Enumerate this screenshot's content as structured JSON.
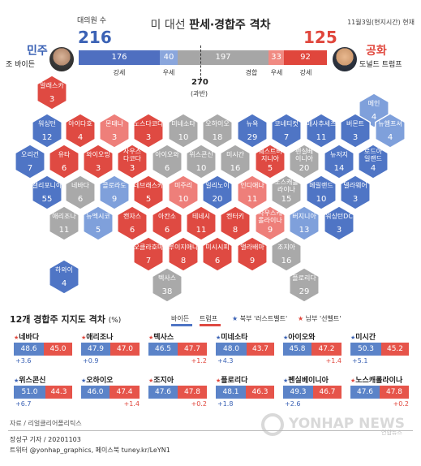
{
  "header": {
    "title_prefix": "미 대선",
    "title_main": "판세·경합주 격차",
    "date": "11월3일(현지시간) 현재"
  },
  "candidates": {
    "biden": {
      "electors_label": "대의원 수",
      "total": "216",
      "party": "민주",
      "name": "조 바이든"
    },
    "trump": {
      "total": "125",
      "party": "공화",
      "name": "도널드 트럼프"
    }
  },
  "tally_bar": {
    "segments": [
      {
        "label": "강세",
        "value": "176",
        "color": "#4f6fc0"
      },
      {
        "label": "우세",
        "value": "40",
        "color": "#8aa6dc"
      },
      {
        "label": "경합",
        "value": "197",
        "color": "#a6a6a6"
      },
      {
        "label": "우세",
        "value": "33",
        "color": "#f08a82"
      },
      {
        "label": "강세",
        "value": "92",
        "color": "#e0463c"
      }
    ],
    "majority_value": "270",
    "majority_label": "(과반)"
  },
  "colors": {
    "solid_d": "#4f75c5",
    "lean_d": "#7fa0db",
    "toss": "#a9a9a9",
    "lean_r": "#ee7f7a",
    "solid_r": "#df4a42"
  },
  "states": [
    {
      "name": "알래스카",
      "val": "3",
      "c": "solid_r"
    },
    {
      "name": "메인",
      "val": "4",
      "c": "lean_d"
    },
    {
      "name": "워싱턴",
      "val": "12",
      "c": "solid_d"
    },
    {
      "name": "아이다호",
      "val": "4",
      "c": "solid_r"
    },
    {
      "name": "몬태나",
      "val": "3",
      "c": "lean_r"
    },
    {
      "name": "노스다코다",
      "val": "3",
      "c": "solid_r"
    },
    {
      "name": "미네소타",
      "val": "10",
      "c": "toss"
    },
    {
      "name": "오하이오",
      "val": "18",
      "c": "toss"
    },
    {
      "name": "뉴욕",
      "val": "29",
      "c": "solid_d"
    },
    {
      "name": "코네티컷",
      "val": "7",
      "c": "solid_d"
    },
    {
      "name": "매사추세츠",
      "val": "11",
      "c": "solid_d"
    },
    {
      "name": "버몬트",
      "val": "3",
      "c": "solid_d"
    },
    {
      "name": "뉴햄프셔",
      "val": "4",
      "c": "lean_d"
    },
    {
      "name": "오리건",
      "val": "7",
      "c": "solid_d"
    },
    {
      "name": "유타",
      "val": "6",
      "c": "solid_r"
    },
    {
      "name": "와이오밍",
      "val": "3",
      "c": "solid_r"
    },
    {
      "name": "사우스다코다",
      "val": "3",
      "c": "solid_r"
    },
    {
      "name": "아이오와",
      "val": "6",
      "c": "toss"
    },
    {
      "name": "위스콘신",
      "val": "10",
      "c": "toss"
    },
    {
      "name": "미시간",
      "val": "16",
      "c": "toss"
    },
    {
      "name": "웨스트버지니아",
      "val": "5",
      "c": "solid_r"
    },
    {
      "name": "펜실베이니아",
      "val": "20",
      "c": "toss"
    },
    {
      "name": "뉴저지",
      "val": "14",
      "c": "solid_d"
    },
    {
      "name": "로드아일랜드",
      "val": "4",
      "c": "solid_d"
    },
    {
      "name": "캘리포니아",
      "val": "55",
      "c": "solid_d"
    },
    {
      "name": "네바다",
      "val": "6",
      "c": "toss"
    },
    {
      "name": "콜로라도",
      "val": "9",
      "c": "lean_d"
    },
    {
      "name": "네브래스카",
      "val": "5",
      "c": "solid_r"
    },
    {
      "name": "미주리",
      "val": "10",
      "c": "lean_r"
    },
    {
      "name": "일리노이",
      "val": "20",
      "c": "solid_d"
    },
    {
      "name": "인디애나",
      "val": "11",
      "c": "lean_r"
    },
    {
      "name": "노스캐롤라이나",
      "val": "15",
      "c": "toss"
    },
    {
      "name": "메릴랜드",
      "val": "10",
      "c": "solid_d"
    },
    {
      "name": "델라웨어",
      "val": "3",
      "c": "solid_d"
    },
    {
      "name": "애리조나",
      "val": "11",
      "c": "toss"
    },
    {
      "name": "뉴멕시코",
      "val": "5",
      "c": "lean_d"
    },
    {
      "name": "캔자스",
      "val": "6",
      "c": "solid_r"
    },
    {
      "name": "아칸소",
      "val": "6",
      "c": "solid_r"
    },
    {
      "name": "테네시",
      "val": "11",
      "c": "solid_r"
    },
    {
      "name": "켄터키",
      "val": "8",
      "c": "solid_r"
    },
    {
      "name": "사우스캐롤라이나",
      "val": "9",
      "c": "lean_r"
    },
    {
      "name": "버지니아",
      "val": "13",
      "c": "lean_d"
    },
    {
      "name": "워싱턴DC",
      "val": "3",
      "c": "solid_d"
    },
    {
      "name": "오클라호마",
      "val": "7",
      "c": "solid_r"
    },
    {
      "name": "루이지애나",
      "val": "8",
      "c": "solid_r"
    },
    {
      "name": "미시시피",
      "val": "6",
      "c": "solid_r"
    },
    {
      "name": "앨라배마",
      "val": "9",
      "c": "solid_r"
    },
    {
      "name": "조지아",
      "val": "16",
      "c": "toss"
    },
    {
      "name": "하와이",
      "val": "4",
      "c": "solid_d"
    },
    {
      "name": "텍사스",
      "val": "38",
      "c": "toss"
    },
    {
      "name": "플로리다",
      "val": "29",
      "c": "toss"
    }
  ],
  "section2": {
    "title": "12개 경합주 지지도 격차",
    "unit": "(%)",
    "legend": {
      "biden": "바이든",
      "trump": "트럼프",
      "rust": "북부 '러스트벨트'",
      "sun": "남부 '선벨트'",
      "rust_mark": "★",
      "sun_mark": "★"
    }
  },
  "chart_data": {
    "type": "bar",
    "title": "12개 경합주 지지도 격차 (%)",
    "series": [
      {
        "name": "바이든",
        "values": [
          48.6,
          47.9,
          46.5,
          48.0,
          45.8,
          50.3,
          51.0,
          46.0,
          47.6,
          48.1,
          49.3,
          47.6
        ]
      },
      {
        "name": "트럼프",
        "values": [
          45.0,
          47.0,
          47.7,
          43.7,
          47.2,
          45.2,
          44.3,
          47.4,
          47.8,
          46.3,
          46.7,
          47.8
        ]
      }
    ],
    "categories": [
      "네바다",
      "애리조나",
      "텍사스",
      "미네소타",
      "아이오와",
      "미시간",
      "위스콘신",
      "오하이오",
      "조지아",
      "플로리다",
      "펜실베이니아",
      "노스캐롤라이나"
    ],
    "gaps": [
      "+3.6",
      "+0.9",
      "+1.2",
      "+4.3",
      "+1.4",
      "+5.1",
      "+6.7",
      "+1.4",
      "+0.2",
      "+1.8",
      "+2.6",
      "+0.2"
    ],
    "leader": [
      "b",
      "b",
      "r",
      "b",
      "r",
      "b",
      "b",
      "r",
      "r",
      "b",
      "b",
      "r"
    ],
    "belt": [
      "sun",
      "sun",
      "sun",
      "rust",
      "rust",
      "rust",
      "rust",
      "rust",
      "sun",
      "sun",
      "rust",
      "sun"
    ]
  },
  "footer": {
    "source": "자료 / 리얼클리어폴리틱스",
    "credit1": "장성구 기자 / 20201103",
    "credit2": "트위터 @yonhap_graphics, 페이스북 tuney.kr/LeYN1",
    "watermark": "YONHAP NEWS",
    "watermark_small": "연합뉴스"
  }
}
